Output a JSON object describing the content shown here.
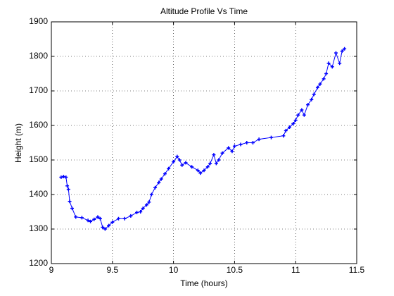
{
  "chart_data": {
    "type": "line",
    "title": "Altitude Profile Vs Time",
    "x_label": "Time (hours)",
    "y_label": "Height (m)",
    "x": [
      9.08,
      9.1,
      9.12,
      9.13,
      9.14,
      9.15,
      9.17,
      9.2,
      9.25,
      9.3,
      9.32,
      9.35,
      9.38,
      9.4,
      9.42,
      9.44,
      9.47,
      9.5,
      9.55,
      9.6,
      9.65,
      9.7,
      9.73,
      9.75,
      9.78,
      9.8,
      9.82,
      9.85,
      9.88,
      9.9,
      9.93,
      9.96,
      10.0,
      10.03,
      10.05,
      10.07,
      10.1,
      10.15,
      10.2,
      10.22,
      10.25,
      10.28,
      10.3,
      10.33,
      10.35,
      10.37,
      10.4,
      10.45,
      10.48,
      10.5,
      10.55,
      10.6,
      10.65,
      10.7,
      10.8,
      10.9,
      10.92,
      10.95,
      10.98,
      11.0,
      11.02,
      11.05,
      11.07,
      11.1,
      11.13,
      11.15,
      11.18,
      11.2,
      11.23,
      11.25,
      11.27,
      11.3,
      11.33,
      11.36,
      11.38,
      11.4
    ],
    "series": [
      {
        "color": "#0000ff",
        "values": [
          1450,
          1452,
          1450,
          1425,
          1415,
          1380,
          1360,
          1335,
          1333,
          1325,
          1322,
          1328,
          1335,
          1330,
          1305,
          1300,
          1310,
          1320,
          1330,
          1330,
          1338,
          1348,
          1350,
          1360,
          1370,
          1378,
          1400,
          1420,
          1435,
          1445,
          1460,
          1475,
          1495,
          1510,
          1500,
          1485,
          1492,
          1480,
          1470,
          1462,
          1470,
          1480,
          1490,
          1515,
          1490,
          1500,
          1520,
          1535,
          1525,
          1540,
          1545,
          1550,
          1550,
          1560,
          1565,
          1570,
          1585,
          1595,
          1605,
          1615,
          1630,
          1645,
          1630,
          1660,
          1675,
          1690,
          1710,
          1720,
          1735,
          1750,
          1780,
          1770,
          1810,
          1780,
          1815,
          1822
        ]
      }
    ],
    "xlim": [
      9,
      11.5
    ],
    "xticks": [
      9,
      9.5,
      10,
      10.5,
      11,
      11.5
    ],
    "ylim": [
      1200,
      1900
    ],
    "yticks": [
      1200,
      1300,
      1400,
      1500,
      1600,
      1700,
      1800,
      1900
    ],
    "grid": true
  }
}
